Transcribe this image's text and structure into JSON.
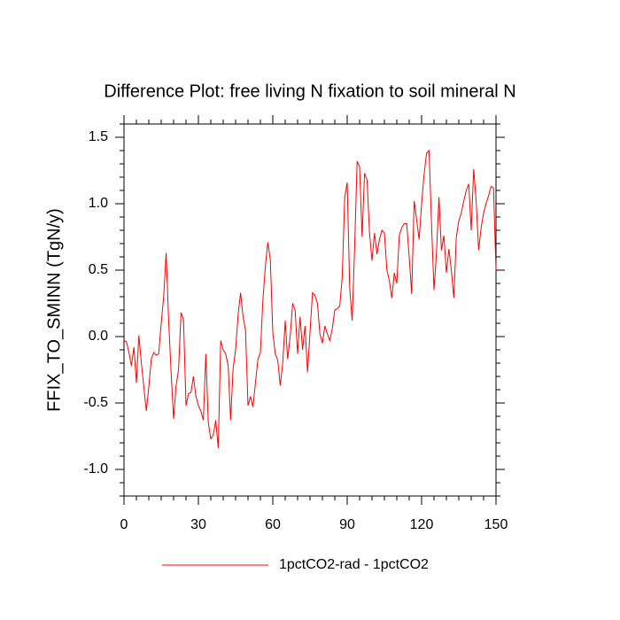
{
  "chart_data": {
    "type": "line",
    "title": "Difference Plot: free living N fixation to soil mineral N",
    "y_label": "FFIX_TO_SMINN  (TgN/y)",
    "x": [
      0,
      1,
      2,
      3,
      4,
      5,
      6,
      7,
      8,
      9,
      10,
      11,
      12,
      13,
      14,
      15,
      16,
      17,
      18,
      19,
      20,
      21,
      22,
      23,
      24,
      25,
      26,
      27,
      28,
      29,
      30,
      31,
      32,
      33,
      34,
      35,
      36,
      37,
      38,
      39,
      40,
      41,
      42,
      43,
      44,
      45,
      46,
      47,
      48,
      49,
      50,
      51,
      52,
      53,
      54,
      55,
      56,
      57,
      58,
      59,
      60,
      61,
      62,
      63,
      64,
      65,
      66,
      67,
      68,
      69,
      70,
      71,
      72,
      73,
      74,
      75,
      76,
      77,
      78,
      79,
      80,
      81,
      82,
      83,
      84,
      85,
      86,
      87,
      88,
      89,
      90,
      91,
      92,
      93,
      94,
      95,
      96,
      97,
      98,
      99,
      100,
      101,
      102,
      103,
      104,
      105,
      106,
      107,
      108,
      109,
      110,
      111,
      112,
      113,
      114,
      115,
      116,
      117,
      118,
      119,
      120,
      121,
      122,
      123,
      124,
      125,
      126,
      127,
      128,
      129,
      130,
      131,
      132,
      133,
      134,
      135,
      136,
      137,
      138,
      139,
      140,
      141,
      142,
      143,
      144,
      145,
      146,
      147,
      148,
      149,
      150
    ],
    "series": [
      {
        "name": "1pctCO2-rad - 1pctCO2",
        "color": "#ff0000",
        "values": [
          -0.03,
          -0.04,
          -0.12,
          -0.22,
          -0.08,
          -0.35,
          0.01,
          -0.2,
          -0.38,
          -0.56,
          -0.38,
          -0.17,
          -0.12,
          -0.14,
          -0.13,
          0.1,
          0.3,
          0.63,
          0.12,
          -0.27,
          -0.62,
          -0.37,
          -0.25,
          0.18,
          0.13,
          -0.52,
          -0.43,
          -0.42,
          -0.3,
          -0.45,
          -0.52,
          -0.56,
          -0.63,
          -0.13,
          -0.65,
          -0.77,
          -0.74,
          -0.63,
          -0.84,
          -0.03,
          -0.1,
          -0.13,
          -0.22,
          -0.63,
          -0.24,
          -0.1,
          0.16,
          0.33,
          0.15,
          0.05,
          -0.52,
          -0.45,
          -0.53,
          -0.35,
          -0.17,
          -0.12,
          0.27,
          0.53,
          0.71,
          0.58,
          0.03,
          -0.13,
          -0.18,
          -0.37,
          -0.2,
          0.12,
          -0.17,
          0.0,
          0.25,
          0.2,
          -0.13,
          0.15,
          -0.1,
          0.08,
          -0.27,
          0.03,
          0.33,
          0.31,
          0.25,
          0.02,
          -0.05,
          0.08,
          0.02,
          -0.03,
          0.06,
          0.2,
          0.21,
          0.23,
          0.45,
          1.05,
          1.16,
          0.37,
          0.12,
          0.67,
          1.32,
          1.28,
          0.75,
          1.23,
          1.18,
          0.78,
          0.57,
          0.78,
          0.62,
          0.73,
          0.8,
          0.78,
          0.5,
          0.42,
          0.29,
          0.48,
          0.4,
          0.76,
          0.82,
          0.85,
          0.85,
          0.6,
          0.32,
          1.02,
          0.88,
          0.73,
          1.0,
          1.22,
          1.38,
          1.4,
          0.85,
          0.35,
          0.63,
          1.05,
          0.65,
          0.76,
          0.48,
          0.66,
          0.5,
          0.29,
          0.75,
          0.87,
          0.93,
          1.02,
          1.1,
          1.15,
          0.8,
          1.26,
          1.02,
          0.65,
          0.82,
          0.93,
          1.0,
          1.06,
          1.13,
          1.12,
          0.5
        ]
      }
    ],
    "xlim": [
      0,
      150
    ],
    "ylim": [
      -1.2,
      1.6
    ],
    "xticks": [
      0,
      30,
      60,
      90,
      120,
      150
    ],
    "yticks": [
      {
        "value": -1,
        "label": "-1.0"
      },
      -0.5,
      {
        "value": 0,
        "label": "0.0"
      },
      0.5,
      {
        "value": 1,
        "label": "1.0"
      },
      1.5
    ],
    "xminorticks": [
      5,
      10,
      15,
      20,
      25,
      35,
      40,
      45,
      50,
      55,
      65,
      70,
      75,
      80,
      85,
      95,
      100,
      105,
      110,
      115,
      125,
      130,
      135,
      140,
      145
    ],
    "yminorticks": [
      -1.2,
      -1.1,
      -0.9,
      -0.8,
      -0.7,
      -0.6,
      -0.4,
      -0.3,
      -0.2,
      -0.1,
      0.1,
      0.2,
      0.3,
      0.4,
      0.6,
      0.7,
      0.8,
      0.9,
      1.1,
      1.2,
      1.3,
      1.4,
      1.6
    ],
    "legend": "bottom"
  }
}
